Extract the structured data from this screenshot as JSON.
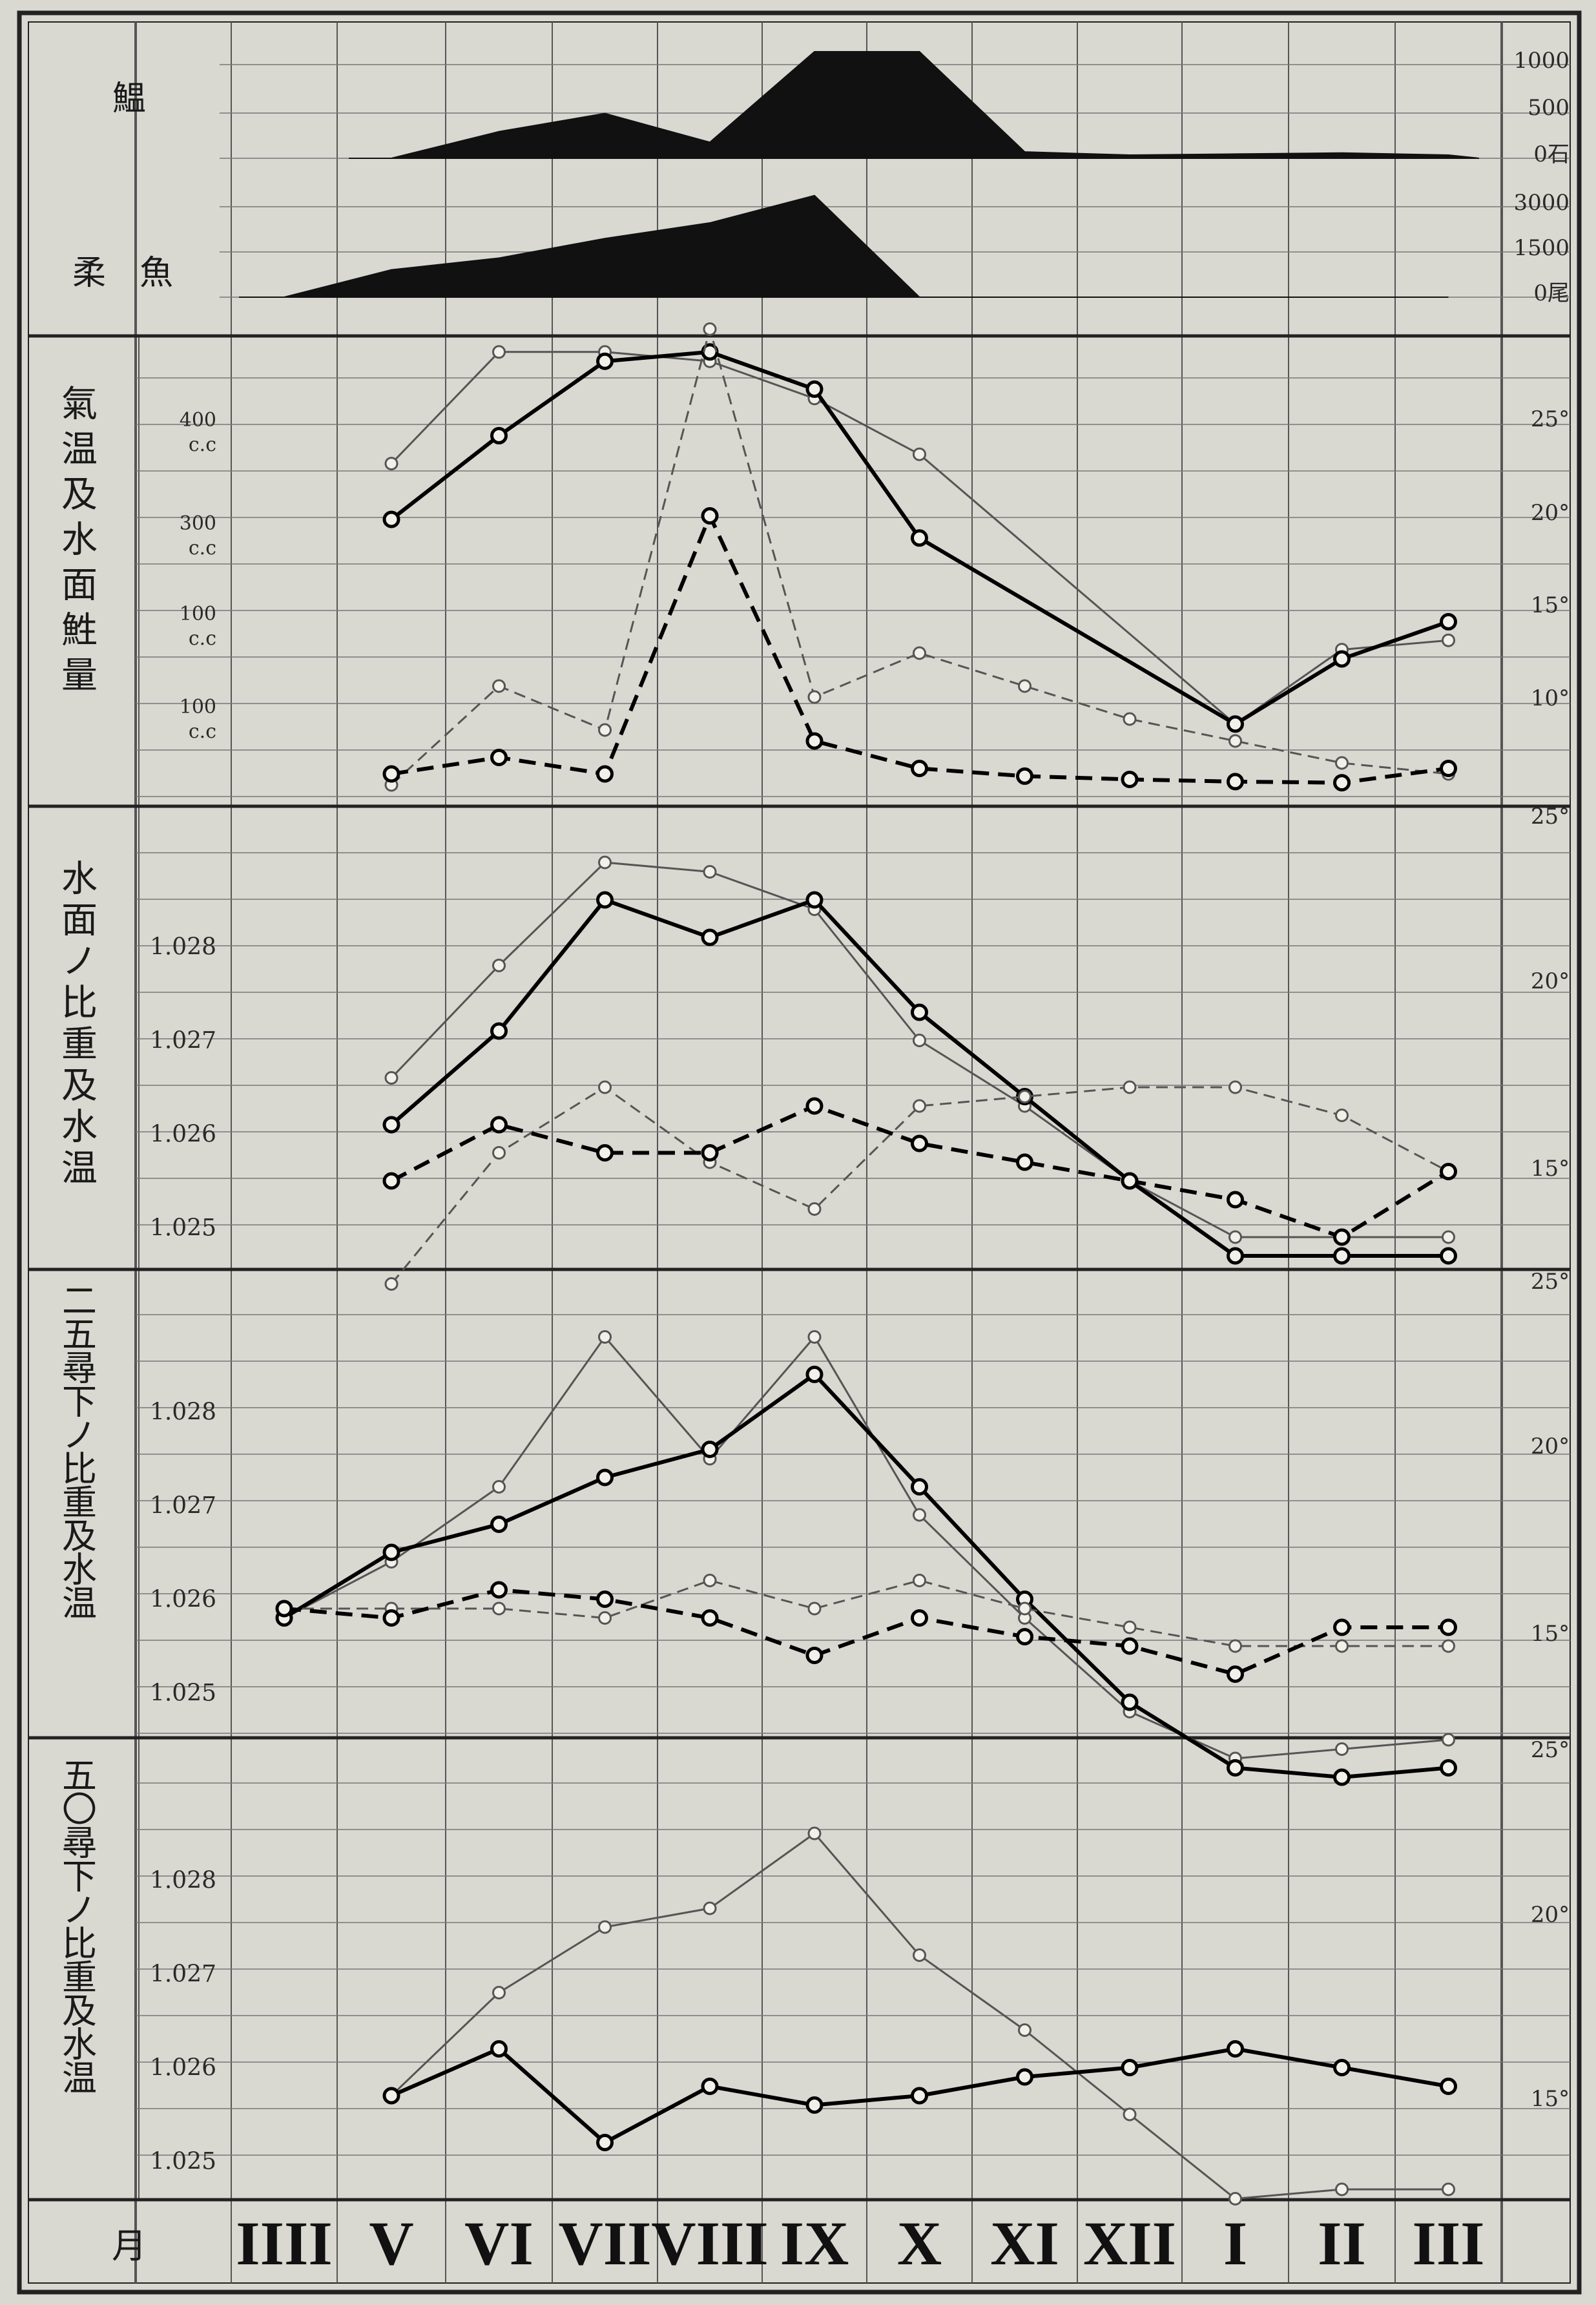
{
  "months": [
    "IIII",
    "V",
    "VI",
    "VII",
    "VIII",
    "IX",
    "X",
    "XI",
    "XII",
    "I",
    "II",
    "III"
  ],
  "month_axis_label": "月",
  "panels": {
    "catch": {
      "label_a": "鰛",
      "label_b": "柔　魚",
      "right_ticks_a": [
        "1000",
        "500",
        "0石"
      ],
      "right_ticks_b": [
        "3000",
        "1500",
        "0尾"
      ]
    },
    "air": {
      "label": "氣温及水面鮏量",
      "left_ticks": [
        "400",
        "c.c",
        "300",
        "c.c",
        "100",
        "c.c",
        "100",
        "c.c"
      ],
      "right_ticks": [
        "25°",
        "20°",
        "15°",
        "10°"
      ]
    },
    "surface": {
      "label": "水面ノ比重及水温",
      "left_ticks": [
        "1.028",
        "1.027",
        "1.026",
        "1.025"
      ],
      "right_ticks": [
        "25°",
        "20°",
        "15°"
      ]
    },
    "d25": {
      "label": "二五尋下ノ比重及水温",
      "left_ticks": [
        "1.028",
        "1.027",
        "1.026",
        "1.025"
      ],
      "right_ticks": [
        "25°",
        "20°",
        "15°"
      ]
    },
    "d50": {
      "label": "五〇尋下ノ比重及水温",
      "left_ticks": [
        "1.028",
        "1.027",
        "1.026",
        "1.025"
      ],
      "right_ticks": [
        "25°",
        "20°",
        "15°"
      ]
    }
  },
  "chart_data": [
    {
      "type": "area",
      "panel": "catch",
      "x": [
        "IIII",
        "V",
        "VI",
        "VII",
        "VIII",
        "IX",
        "X",
        "XI",
        "XII",
        "I",
        "II",
        "III"
      ],
      "series": [
        {
          "values": [
            0,
            0,
            250,
            420,
            150,
            1000,
            1000,
            60,
            30,
            40,
            50,
            30
          ]
        },
        {
          "values": [
            0,
            700,
            1000,
            1500,
            1900,
            2600,
            0,
            0,
            0,
            0,
            0,
            0
          ]
        }
      ]
    },
    {
      "type": "line",
      "panel": "air",
      "x": [
        "V",
        "VI",
        "VII",
        "VIII",
        "IX",
        "X",
        "XI",
        "XII",
        "I",
        "II",
        "III"
      ],
      "series": [
        {
          "values": [
            23,
            29,
            29,
            28.5,
            26.5,
            23.5,
            null,
            null,
            9,
            13,
            13.5
          ]
        },
        {
          "values": [
            20,
            24.5,
            28.5,
            29,
            27,
            19,
            null,
            null,
            9,
            12.5,
            14.5
          ]
        },
        {
          "values": [
            0,
            90,
            50,
            415,
            80,
            120,
            90,
            60,
            40,
            20,
            10
          ]
        },
        {
          "values": [
            10,
            25,
            10,
            245,
            40,
            15,
            8,
            5,
            3,
            2,
            15
          ]
        }
      ]
    },
    {
      "type": "line",
      "panel": "surface",
      "x": [
        "V",
        "VI",
        "VII",
        "VIII",
        "IX",
        "X",
        "XI",
        "XII",
        "I",
        "II",
        "III"
      ],
      "series": [
        {
          "values": [
            1.0266,
            1.0278,
            1.0289,
            1.0288,
            1.0284,
            1.027,
            1.0263,
            1.0255,
            1.0249,
            1.0249,
            1.0249
          ]
        },
        {
          "values": [
            1.0261,
            1.0271,
            1.0285,
            1.0281,
            1.0285,
            1.0273,
            1.0264,
            1.0255,
            1.0247,
            1.0247,
            1.0247
          ]
        },
        {
          "values": [
            1.0244,
            1.0258,
            1.0265,
            1.0257,
            1.0252,
            1.0263,
            1.0264,
            1.0265,
            1.0265,
            1.0262,
            1.0256
          ]
        },
        {
          "values": [
            1.0255,
            1.0261,
            1.0258,
            1.0258,
            1.0263,
            1.0259,
            1.0257,
            1.0255,
            1.0253,
            1.0249,
            1.0256
          ]
        }
      ]
    },
    {
      "type": "line",
      "panel": "d25",
      "x": [
        "IIII",
        "V",
        "VI",
        "VII",
        "VIII",
        "IX",
        "X",
        "XI",
        "XII",
        "I",
        "II",
        "III"
      ],
      "series": [
        {
          "values": [
            1.0258,
            1.0264,
            1.0272,
            1.0288,
            1.0275,
            1.0288,
            1.0269,
            1.0258,
            1.0248,
            1.0243,
            1.0244,
            1.0245
          ]
        },
        {
          "values": [
            1.0258,
            1.0265,
            1.0268,
            1.0273,
            1.0276,
            1.0284,
            1.0272,
            1.026,
            1.0249,
            1.0242,
            1.0241,
            1.0242
          ]
        },
        {
          "values": [
            1.0259,
            1.0259,
            1.0259,
            1.0258,
            1.0262,
            1.0259,
            1.0262,
            1.0259,
            1.0257,
            1.0255,
            1.0255,
            1.0255
          ]
        },
        {
          "values": [
            1.0259,
            1.0258,
            1.0261,
            1.026,
            1.0258,
            1.0254,
            1.0258,
            1.0256,
            1.0255,
            1.0252,
            1.0257,
            1.0257
          ]
        }
      ]
    },
    {
      "type": "line",
      "panel": "d50",
      "x": [
        "V",
        "VI",
        "VII",
        "VIII",
        "IX",
        "X",
        "XI",
        "XII",
        "I",
        "II",
        "III"
      ],
      "series": [
        {
          "values": [
            1.0257,
            1.0268,
            1.0275,
            1.0277,
            1.0285,
            1.0272,
            1.0264,
            1.0255,
            1.0246,
            1.0247,
            1.0247
          ]
        },
        {
          "values": [
            1.0257,
            1.0262,
            1.0252,
            1.0258,
            1.0256,
            1.0257,
            1.0259,
            1.026,
            1.0262,
            1.026,
            1.0258
          ]
        }
      ]
    }
  ]
}
